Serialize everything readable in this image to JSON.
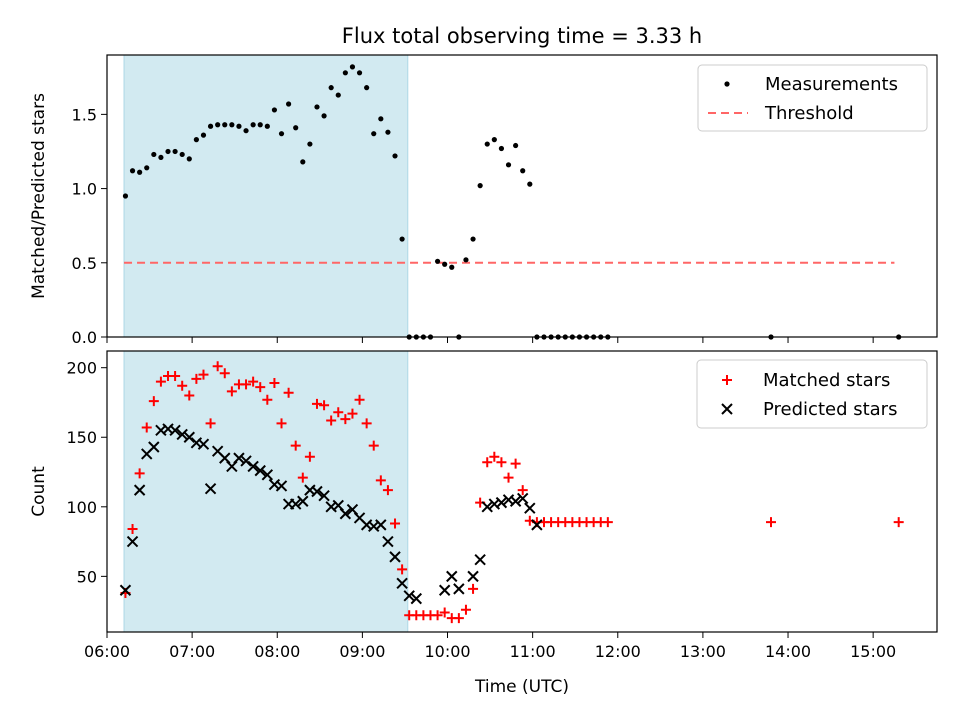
{
  "title": "Flux total observing time = 3.33 h",
  "colors": {
    "shade": "#add8e6",
    "threshold": "#ff6666",
    "matched": "#ff0000",
    "predicted": "#000000",
    "measurement": "#000000"
  },
  "chart_data": [
    {
      "type": "scatter",
      "ylabel": "Matched/Predicted stars",
      "ylim": [
        0,
        1.9
      ],
      "yticks": [
        0.0,
        0.5,
        1.0,
        1.5
      ],
      "ytick_labels": [
        "0.0",
        "0.5",
        "1.0",
        "1.5"
      ],
      "shaded_span": [
        "06:12",
        "09:32"
      ],
      "legend": [
        "Measurements",
        "Threshold"
      ],
      "legend_position": "top-right",
      "threshold": {
        "y": 0.5,
        "x_range": [
          "06:12",
          "15:15"
        ]
      },
      "series": [
        {
          "name": "Measurements",
          "marker": "dot",
          "x": [
            "06:13",
            "06:18",
            "06:23",
            "06:28",
            "06:33",
            "06:38",
            "06:43",
            "06:48",
            "06:53",
            "06:58",
            "07:03",
            "07:08",
            "07:13",
            "07:18",
            "07:23",
            "07:28",
            "07:33",
            "07:38",
            "07:43",
            "07:48",
            "07:53",
            "07:58",
            "08:03",
            "08:08",
            "08:13",
            "08:18",
            "08:23",
            "08:28",
            "08:33",
            "08:38",
            "08:43",
            "08:48",
            "08:53",
            "08:58",
            "09:03",
            "09:08",
            "09:13",
            "09:18",
            "09:23",
            "09:28",
            "09:33",
            "09:38",
            "09:43",
            "09:48",
            "09:53",
            "09:58",
            "10:03",
            "10:08",
            "10:13",
            "10:18",
            "10:23",
            "10:28",
            "10:33",
            "10:38",
            "10:43",
            "10:48",
            "10:53",
            "10:58",
            "11:03",
            "11:08",
            "11:13",
            "11:18",
            "11:23",
            "11:28",
            "11:33",
            "11:38",
            "11:43",
            "11:48",
            "11:53",
            "13:48",
            "15:18"
          ],
          "y": [
            0.95,
            1.12,
            1.11,
            1.14,
            1.23,
            1.21,
            1.25,
            1.25,
            1.23,
            1.2,
            1.33,
            1.36,
            1.42,
            1.43,
            1.43,
            1.43,
            1.42,
            1.39,
            1.43,
            1.43,
            1.42,
            1.53,
            1.37,
            1.57,
            1.41,
            1.18,
            1.3,
            1.55,
            1.49,
            1.68,
            1.63,
            1.78,
            1.82,
            1.78,
            1.68,
            1.37,
            1.47,
            1.38,
            1.22,
            0.66,
            0,
            0,
            0,
            0,
            0.51,
            0.49,
            0.47,
            0,
            0.52,
            0.66,
            1.02,
            1.3,
            1.33,
            1.27,
            1.16,
            1.29,
            1.12,
            1.03,
            0,
            0,
            0,
            0,
            0,
            0,
            0,
            0,
            0,
            0,
            0,
            0,
            0
          ]
        }
      ]
    },
    {
      "type": "scatter",
      "xlabel": "Time (UTC)",
      "ylabel": "Count",
      "ylim": [
        10,
        212
      ],
      "yticks": [
        50,
        100,
        150,
        200
      ],
      "ytick_labels": [
        "50",
        "100",
        "150",
        "200"
      ],
      "xlim": [
        "06:00",
        "15:45"
      ],
      "xticks": [
        "06:00",
        "07:00",
        "08:00",
        "09:00",
        "10:00",
        "11:00",
        "12:00",
        "13:00",
        "14:00",
        "15:00"
      ],
      "shaded_span": [
        "06:12",
        "09:32"
      ],
      "legend": [
        "Matched stars",
        "Predicted stars"
      ],
      "legend_position": "top-right",
      "series": [
        {
          "name": "Matched stars",
          "marker": "plus",
          "x": [
            "06:13",
            "06:18",
            "06:23",
            "06:28",
            "06:33",
            "06:38",
            "06:43",
            "06:48",
            "06:53",
            "06:58",
            "07:03",
            "07:08",
            "07:13",
            "07:18",
            "07:23",
            "07:28",
            "07:33",
            "07:38",
            "07:43",
            "07:48",
            "07:53",
            "07:58",
            "08:03",
            "08:08",
            "08:13",
            "08:18",
            "08:23",
            "08:28",
            "08:33",
            "08:38",
            "08:43",
            "08:48",
            "08:53",
            "08:58",
            "09:03",
            "09:08",
            "09:13",
            "09:18",
            "09:23",
            "09:28",
            "09:33",
            "09:38",
            "09:43",
            "09:48",
            "09:53",
            "09:58",
            "10:03",
            "10:08",
            "10:13",
            "10:18",
            "10:23",
            "10:28",
            "10:33",
            "10:38",
            "10:43",
            "10:48",
            "10:53",
            "10:58",
            "11:03",
            "11:08",
            "11:13",
            "11:18",
            "11:23",
            "11:28",
            "11:33",
            "11:38",
            "11:43",
            "11:48",
            "11:53",
            "13:48",
            "15:18"
          ],
          "y": [
            38,
            84,
            124,
            157,
            176,
            190,
            194,
            194,
            187,
            180,
            192,
            195,
            160,
            201,
            196,
            183,
            188,
            188,
            190,
            186,
            177,
            189,
            160,
            182,
            144,
            121,
            136,
            174,
            173,
            162,
            168,
            163,
            167,
            177,
            160,
            144,
            119,
            112,
            88,
            55,
            22,
            22,
            22,
            22,
            22,
            24,
            20,
            20,
            26,
            41,
            103,
            132,
            136,
            132,
            121,
            131,
            112,
            90,
            89,
            89,
            89,
            89,
            89,
            89,
            89,
            89,
            89,
            89,
            89,
            89,
            89
          ]
        },
        {
          "name": "Predicted stars",
          "marker": "x",
          "x": [
            "06:13",
            "06:18",
            "06:23",
            "06:28",
            "06:33",
            "06:38",
            "06:43",
            "06:48",
            "06:53",
            "06:58",
            "07:03",
            "07:08",
            "07:13",
            "07:18",
            "07:23",
            "07:28",
            "07:33",
            "07:38",
            "07:43",
            "07:48",
            "07:53",
            "07:58",
            "08:03",
            "08:08",
            "08:13",
            "08:18",
            "08:23",
            "08:28",
            "08:33",
            "08:38",
            "08:43",
            "08:48",
            "08:53",
            "08:58",
            "09:03",
            "09:08",
            "09:13",
            "09:18",
            "09:23",
            "09:28",
            "09:33",
            "09:38",
            "09:58",
            "10:03",
            "10:08",
            "10:18",
            "10:23",
            "10:28",
            "10:33",
            "10:38",
            "10:43",
            "10:48",
            "10:53",
            "10:58",
            "11:03"
          ],
          "y": [
            40,
            75,
            112,
            138,
            143,
            155,
            156,
            155,
            152,
            150,
            146,
            145,
            113,
            140,
            135,
            129,
            135,
            133,
            129,
            126,
            123,
            116,
            115,
            102,
            102,
            104,
            112,
            111,
            108,
            100,
            101,
            95,
            98,
            92,
            87,
            86,
            87,
            75,
            64,
            45,
            36,
            34,
            40,
            50,
            41,
            50,
            62,
            100,
            102,
            103,
            105,
            104,
            106,
            99,
            87
          ]
        }
      ]
    }
  ]
}
